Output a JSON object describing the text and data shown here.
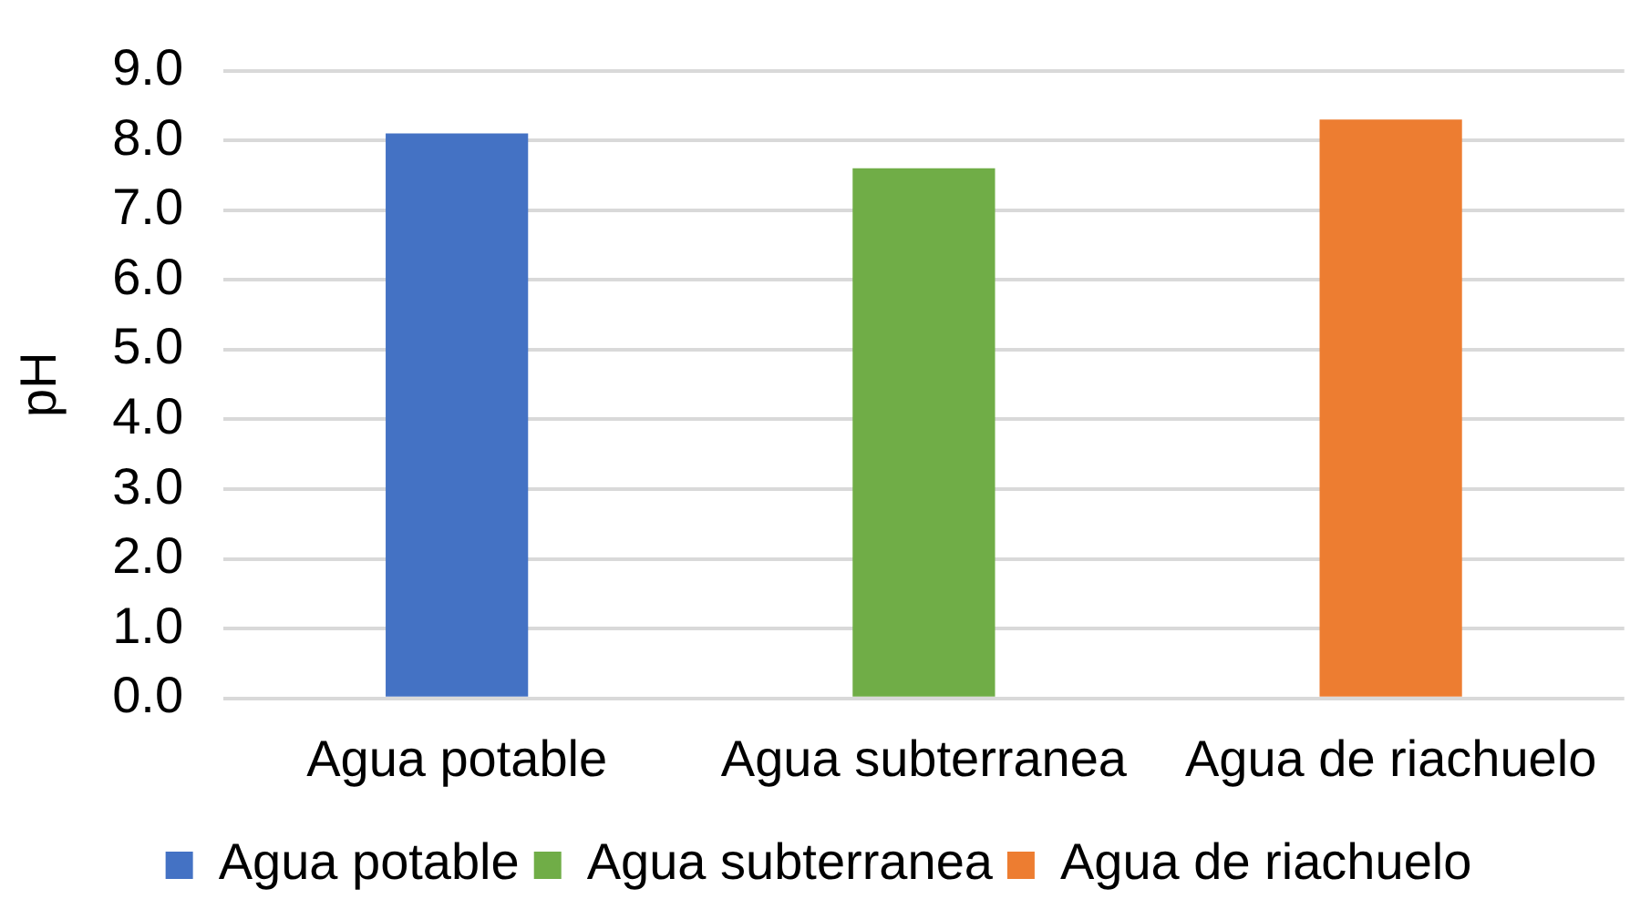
{
  "chart_data": {
    "type": "bar",
    "ylabel": "pH",
    "categories": [
      "Agua potable",
      "Agua subterranea",
      "Agua de riachuelo"
    ],
    "series": [
      {
        "name": "Agua potable",
        "color": "#4472c4",
        "values": [
          8.1,
          null,
          null
        ]
      },
      {
        "name": "Agua subterranea",
        "color": "#70ad47",
        "values": [
          null,
          7.6,
          null
        ]
      },
      {
        "name": "Agua de riachuelo",
        "color": "#ed7d31",
        "values": [
          null,
          null,
          8.3
        ]
      }
    ],
    "ylim": [
      0,
      9
    ],
    "yticks": [
      {
        "value": 0,
        "label": "0.0"
      },
      {
        "value": 1,
        "label": "1.0"
      },
      {
        "value": 2,
        "label": "2.0"
      },
      {
        "value": 3,
        "label": "3.0"
      },
      {
        "value": 4,
        "label": "4.0"
      },
      {
        "value": 5,
        "label": "5.0"
      },
      {
        "value": 6,
        "label": "6.0"
      },
      {
        "value": 7,
        "label": "7.0"
      },
      {
        "value": 8,
        "label": "8.0"
      },
      {
        "value": 9,
        "label": "9.0"
      }
    ],
    "grid": "y",
    "legend": "bottom"
  }
}
